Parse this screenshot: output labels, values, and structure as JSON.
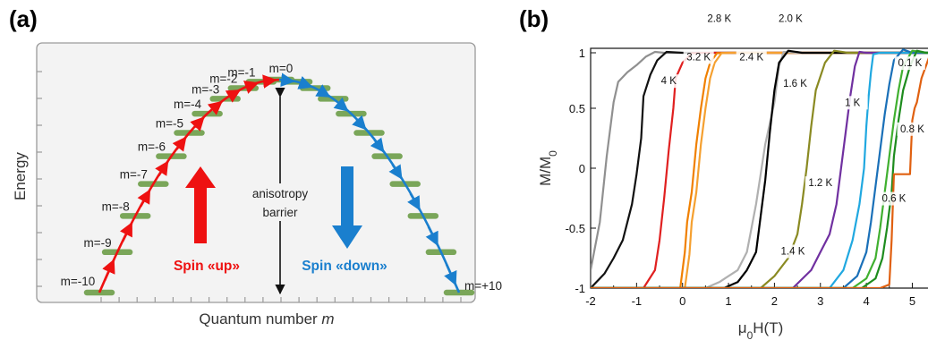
{
  "chart_data": [
    {
      "type": "diagram",
      "panel_label": "(a)",
      "xlabel": "Quantum number ",
      "xlabel_italic": "m",
      "ylabel": "Energy",
      "levels": [
        {
          "m": -10,
          "label": "m=-10",
          "energy": 0.0
        },
        {
          "m": -9,
          "label": "m=-9",
          "energy": 0.19
        },
        {
          "m": -8,
          "label": "m=-8",
          "energy": 0.36
        },
        {
          "m": -7,
          "label": "m=-7",
          "energy": 0.51
        },
        {
          "m": -6,
          "label": "m=-6",
          "energy": 0.64
        },
        {
          "m": -5,
          "label": "m=-5",
          "energy": 0.75
        },
        {
          "m": -4,
          "label": "m=-4",
          "energy": 0.84
        },
        {
          "m": -3,
          "label": "m=-3",
          "energy": 0.91
        },
        {
          "m": -2,
          "label": "m=-2",
          "energy": 0.96
        },
        {
          "m": -1,
          "label": "m=-1",
          "energy": 0.99
        },
        {
          "m": 0,
          "label": "m=0",
          "energy": 1.0
        },
        {
          "m": 1,
          "label": "",
          "energy": 0.99
        },
        {
          "m": 2,
          "label": "",
          "energy": 0.96
        },
        {
          "m": 3,
          "label": "",
          "energy": 0.91
        },
        {
          "m": 4,
          "label": "",
          "energy": 0.84
        },
        {
          "m": 5,
          "label": "",
          "energy": 0.75
        },
        {
          "m": 6,
          "label": "",
          "energy": 0.64
        },
        {
          "m": 7,
          "label": "",
          "energy": 0.51
        },
        {
          "m": 8,
          "label": "",
          "energy": 0.36
        },
        {
          "m": 9,
          "label": "",
          "energy": 0.19
        },
        {
          "m": 10,
          "label": "m=+10",
          "energy": 0.0
        }
      ],
      "annotations": {
        "barrier_label_1": "anisotropy",
        "barrier_label_2": "barrier",
        "spin_up_label": "Spin «up»",
        "spin_down_label": "Spin «down»"
      },
      "colors": {
        "level": "#7aa659",
        "spin_up": "#ee1111",
        "spin_down": "#1a7fce",
        "frame": "#9a9a9a",
        "background": "#f3f3f3"
      }
    },
    {
      "type": "line",
      "panel_label": "(b)",
      "xlabel": "μ0H(T)",
      "ylabel": "M/M0",
      "xlim": [
        -2,
        5.4
      ],
      "ylim": [
        -1,
        1
      ],
      "xticks": [
        -2,
        -1,
        0,
        1,
        2,
        3,
        4,
        5
      ],
      "yticks": [
        1,
        0.5,
        0,
        -0.5,
        -1
      ],
      "series": [
        {
          "name": "4 K",
          "color": "#909090",
          "h": [
            -2.0,
            -1.8,
            -1.65,
            -1.5,
            -1.4,
            -1.2,
            -1.0,
            -0.8,
            -0.6,
            -0.4,
            0.0
          ],
          "m": [
            -0.85,
            -0.45,
            0.1,
            0.55,
            0.72,
            0.8,
            0.86,
            0.93,
            0.97,
            1.0,
            1.0
          ]
        },
        {
          "name": "3.2 K",
          "color": "#111111",
          "h": [
            -1.7,
            -1.5,
            -1.3,
            -1.1,
            -1.0,
            -0.9,
            -0.85,
            -0.7,
            -0.55,
            -0.35,
            0.0
          ],
          "m": [
            -0.88,
            -0.75,
            -0.6,
            -0.3,
            -0.05,
            0.25,
            0.6,
            0.78,
            0.9,
            0.97,
            1.0
          ]
        },
        {
          "name": "2.8 K",
          "color": "#e02020",
          "h": [
            -0.85,
            -0.6,
            -0.5,
            -0.4,
            -0.3,
            -0.2,
            -0.15,
            0.0,
            0.2,
            0.6,
            1.0
          ],
          "m": [
            -1.0,
            -0.85,
            -0.6,
            -0.25,
            0.15,
            0.5,
            0.75,
            0.88,
            0.96,
            1.0,
            1.0
          ]
        },
        {
          "name": "2.4 K",
          "color": "#f08000",
          "h": [
            -0.05,
            0.05,
            0.1,
            0.2,
            0.3,
            0.4,
            0.5,
            0.6,
            0.75,
            1.0,
            1.3
          ],
          "m": [
            -1.0,
            -0.7,
            -0.45,
            -0.2,
            0.2,
            0.5,
            0.75,
            0.88,
            0.96,
            1.0,
            1.0
          ]
        },
        {
          "name": "2.0 K",
          "color": "#f5a030",
          "h": [
            0.05,
            0.15,
            0.2,
            0.3,
            0.4,
            0.5,
            0.6,
            0.7,
            0.85,
            1.1,
            1.4
          ],
          "m": [
            -1.0,
            -0.72,
            -0.45,
            -0.2,
            0.2,
            0.5,
            0.75,
            0.88,
            0.96,
            1.0,
            1.0
          ]
        },
        {
          "name": "1.6 K",
          "color": "#b0b0b0",
          "h": [
            0.5,
            0.8,
            1.0,
            1.2,
            1.4,
            1.6,
            1.8,
            2.0,
            2.1,
            2.2,
            2.5
          ],
          "m": [
            -1.0,
            -0.95,
            -0.9,
            -0.85,
            -0.7,
            -0.3,
            0.2,
            0.55,
            0.85,
            0.97,
            1.0
          ]
        },
        {
          "name": "1.2 K",
          "color": "#000000",
          "h": [
            0.9,
            1.2,
            1.4,
            1.6,
            1.7,
            1.8,
            1.9,
            2.0,
            2.1,
            2.3,
            2.6
          ],
          "m": [
            -1.0,
            -0.95,
            -0.85,
            -0.7,
            -0.4,
            -0.1,
            0.3,
            0.65,
            0.88,
            0.98,
            1.0
          ]
        },
        {
          "name": "1.4 K",
          "color": "#8a8a22",
          "h": [
            1.7,
            2.0,
            2.3,
            2.5,
            2.6,
            2.7,
            2.8,
            2.9,
            3.1,
            3.3,
            3.6
          ],
          "m": [
            -1.0,
            -0.9,
            -0.75,
            -0.55,
            -0.3,
            0.0,
            0.35,
            0.65,
            0.88,
            0.98,
            1.0
          ]
        },
        {
          "name": "1 K",
          "color": "#7030a0",
          "h": [
            2.4,
            2.8,
            3.0,
            3.2,
            3.35,
            3.45,
            3.55,
            3.65,
            3.75,
            3.85,
            4.0
          ],
          "m": [
            -1.0,
            -0.85,
            -0.7,
            -0.55,
            -0.3,
            0.0,
            0.3,
            0.6,
            0.85,
            0.97,
            1.0
          ]
        },
        {
          "name": "0.8 K",
          "color": "#20a8e0",
          "h": [
            3.2,
            3.5,
            3.7,
            3.85,
            3.95,
            4.0,
            4.05,
            4.1,
            4.15,
            4.3,
            4.6
          ],
          "m": [
            -1.0,
            -0.85,
            -0.6,
            -0.3,
            0.0,
            0.35,
            0.6,
            0.8,
            0.95,
            1.0,
            1.0
          ]
        },
        {
          "name": "0.6 K",
          "color": "#1a70b8",
          "h": [
            3.5,
            3.8,
            4.0,
            4.1,
            4.2,
            4.3,
            4.4,
            4.5,
            4.6,
            4.8,
            5.0
          ],
          "m": [
            -1.0,
            -0.9,
            -0.7,
            -0.45,
            -0.15,
            0.15,
            0.45,
            0.7,
            0.9,
            0.99,
            1.0
          ]
        },
        {
          "name": "0.1 K",
          "color": "#40b030",
          "h": [
            3.7,
            4.0,
            4.2,
            4.3,
            4.4,
            4.5,
            4.6,
            4.7,
            4.8,
            5.0,
            5.3
          ],
          "m": [
            -1.0,
            -0.92,
            -0.75,
            -0.5,
            -0.2,
            0.1,
            0.4,
            0.65,
            0.85,
            0.98,
            1.0
          ]
        },
        {
          "name": "",
          "color": "#1e8c1e",
          "h": [
            3.9,
            4.2,
            4.35,
            4.45,
            4.55,
            4.6,
            4.7,
            4.8,
            4.95,
            5.1,
            5.3
          ],
          "m": [
            -1.0,
            -0.92,
            -0.75,
            -0.5,
            -0.2,
            0.1,
            0.4,
            0.65,
            0.85,
            0.98,
            1.0
          ]
        },
        {
          "name": "",
          "color": "#e06010",
          "h": [
            4.3,
            4.5,
            4.55,
            4.6,
            4.65,
            4.95,
            5.0,
            5.05,
            5.1,
            5.2,
            5.4
          ],
          "m": [
            -1.0,
            -0.97,
            -0.6,
            -0.05,
            -0.05,
            -0.05,
            0.4,
            0.5,
            0.55,
            0.75,
            1.0
          ]
        }
      ],
      "temperature_labels": [
        {
          "text": "4 K",
          "h": -0.3,
          "m": 0.7
        },
        {
          "text": "3.2 K",
          "h": 0.35,
          "m": 0.9
        },
        {
          "text": "2.8 K",
          "h": 0.8,
          "m": 1.22
        },
        {
          "text": "2.4 K",
          "h": 1.5,
          "m": 0.9
        },
        {
          "text": "2.0 K",
          "h": 2.35,
          "m": 1.22
        },
        {
          "text": "1.6 K",
          "h": 2.45,
          "m": 0.68
        },
        {
          "text": "1.2 K",
          "h": 3.0,
          "m": -0.15
        },
        {
          "text": "1.4 K",
          "h": 2.4,
          "m": -0.72
        },
        {
          "text": "1 K",
          "h": 3.7,
          "m": 0.52
        },
        {
          "text": "0.8 K",
          "h": 5.0,
          "m": 0.3
        },
        {
          "text": "0.6 K",
          "h": 4.6,
          "m": -0.28
        },
        {
          "text": "0.1 K",
          "h": 4.95,
          "m": 0.85
        }
      ]
    }
  ]
}
